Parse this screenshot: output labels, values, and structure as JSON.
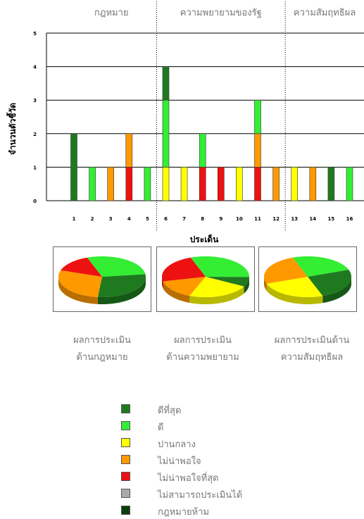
{
  "colors": {
    "best": "#1f7a1f",
    "good": "#33ee33",
    "fair": "#ffff00",
    "unsatisfactory": "#ff9900",
    "worst": "#ee1111",
    "na": "#aaaaaa",
    "prohibited": "#0b3d0b"
  },
  "chart_data": [
    {
      "type": "bar",
      "stacked": true,
      "xlabel": "ประเด็น",
      "ylabel": "จำนวนตัวชี้วัด",
      "ylim": [
        0,
        5
      ],
      "yticks": [
        "0",
        "1",
        "2",
        "3",
        "4",
        "5"
      ],
      "grid": true,
      "categories": [
        "1",
        "2",
        "3",
        "4",
        "5",
        "6",
        "7",
        "8",
        "9",
        "10",
        "11",
        "12",
        "13",
        "14",
        "15",
        "16"
      ],
      "sections": [
        {
          "label": "กฎหมาย",
          "from": 1,
          "to": 5
        },
        {
          "label": "ความพยายามของรัฐ",
          "from": 6,
          "to": 12
        },
        {
          "label": "ความสัมฤทธิผล",
          "from": 13,
          "to": 16
        }
      ],
      "stacks": [
        [
          {
            "c": "best",
            "v": 2
          }
        ],
        [
          {
            "c": "good",
            "v": 1
          }
        ],
        [
          {
            "c": "unsatisfactory",
            "v": 1
          }
        ],
        [
          {
            "c": "worst",
            "v": 1
          },
          {
            "c": "unsatisfactory",
            "v": 1
          }
        ],
        [
          {
            "c": "good",
            "v": 1
          }
        ],
        [
          {
            "c": "fair",
            "v": 1
          },
          {
            "c": "good",
            "v": 2
          },
          {
            "c": "best",
            "v": 1
          }
        ],
        [
          {
            "c": "fair",
            "v": 1
          }
        ],
        [
          {
            "c": "worst",
            "v": 1
          },
          {
            "c": "good",
            "v": 1
          }
        ],
        [
          {
            "c": "worst",
            "v": 1
          }
        ],
        [
          {
            "c": "fair",
            "v": 1
          }
        ],
        [
          {
            "c": "worst",
            "v": 1
          },
          {
            "c": "unsatisfactory",
            "v": 1
          },
          {
            "c": "good",
            "v": 1
          }
        ],
        [
          {
            "c": "unsatisfactory",
            "v": 1
          }
        ],
        [
          {
            "c": "fair",
            "v": 1
          }
        ],
        [
          {
            "c": "unsatisfactory",
            "v": 1
          }
        ],
        [
          {
            "c": "best",
            "v": 1
          }
        ],
        [
          {
            "c": "good",
            "v": 1
          }
        ]
      ]
    },
    {
      "type": "pie",
      "caption": [
        "ผลการประเมิน",
        "ด้านกฎหมาย"
      ],
      "slices": [
        {
          "c": "good",
          "v": 2
        },
        {
          "c": "best",
          "v": 2
        },
        {
          "c": "unsatisfactory",
          "v": 2
        },
        {
          "c": "worst",
          "v": 1
        }
      ]
    },
    {
      "type": "pie",
      "caption": [
        "ผลการประเมิน",
        "ด้านความพยายาม"
      ],
      "slices": [
        {
          "c": "good",
          "v": 4
        },
        {
          "c": "best",
          "v": 1
        },
        {
          "c": "fair",
          "v": 3
        },
        {
          "c": "unsatisfactory",
          "v": 2
        },
        {
          "c": "worst",
          "v": 3
        }
      ]
    },
    {
      "type": "pie",
      "caption": [
        "ผลการประเมินด้าน",
        "ความสัมฤทธิผล"
      ],
      "slices": [
        {
          "c": "good",
          "v": 1
        },
        {
          "c": "best",
          "v": 1
        },
        {
          "c": "fair",
          "v": 1
        },
        {
          "c": "unsatisfactory",
          "v": 1
        }
      ]
    }
  ],
  "legend": [
    {
      "c": "best",
      "label": "ดีที่สุด"
    },
    {
      "c": "good",
      "label": "ดี"
    },
    {
      "c": "fair",
      "label": " ปานกลาง"
    },
    {
      "c": "unsatisfactory",
      "label": "ไม่น่าพอใจ"
    },
    {
      "c": "worst",
      "label": "ไม่น่าพอใจที่สุด"
    },
    {
      "c": "na",
      "label": "ไม่สามารถประเมินได้"
    },
    {
      "c": "prohibited",
      "label": "กฎหมายห้าม"
    }
  ]
}
